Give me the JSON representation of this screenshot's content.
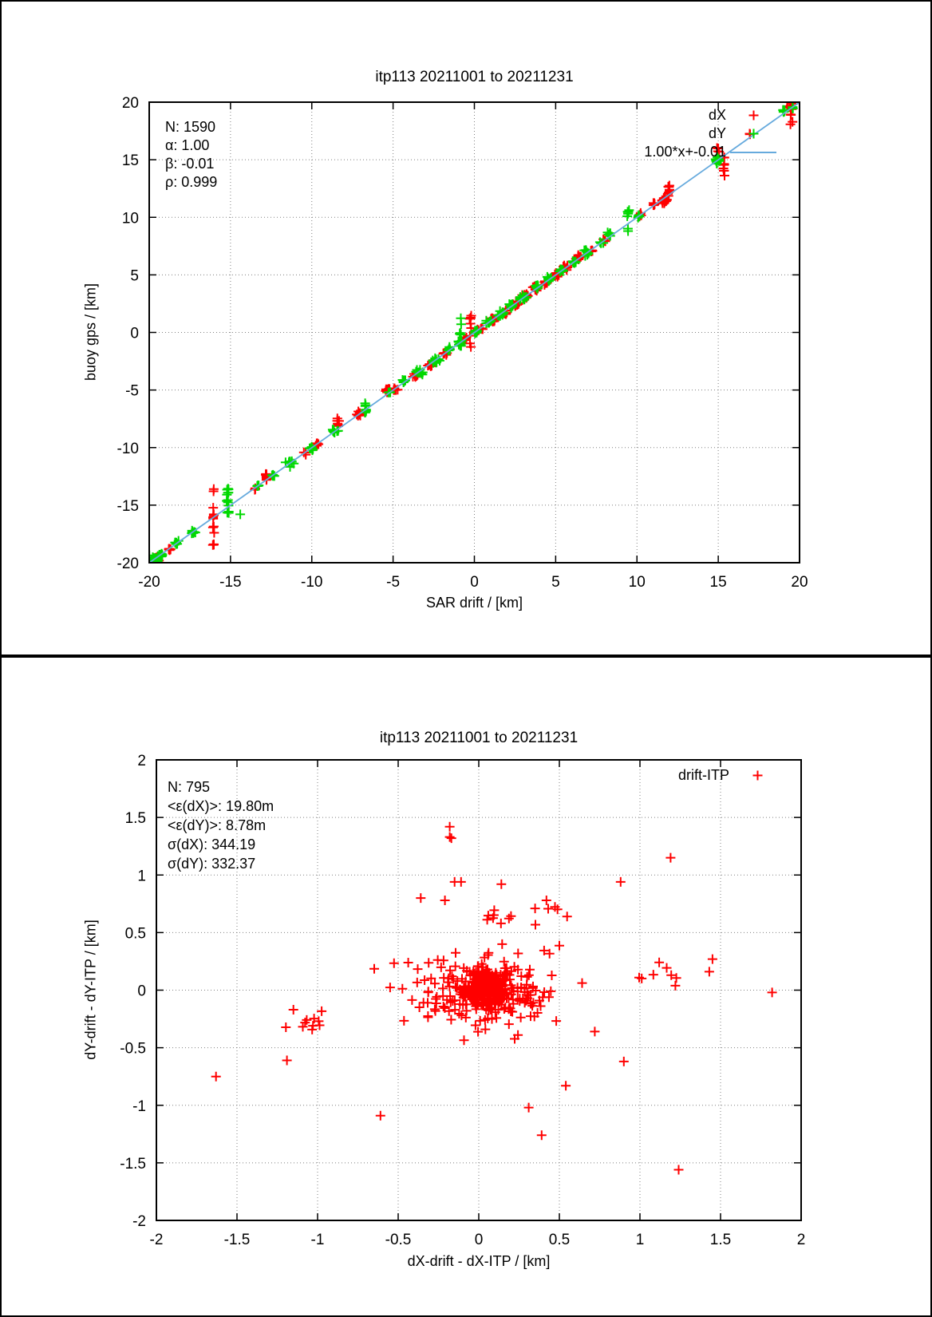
{
  "page": {
    "background": "#ffffff",
    "panel_border": "#000000",
    "grid_color": "#808080",
    "frame_color": "#000000"
  },
  "chart_data": [
    {
      "type": "scatter",
      "title": "itp113 20211001 to 20211231",
      "xlabel": "SAR drift / [km]",
      "ylabel": "buoy gps / [km]",
      "xlim": [
        -20,
        20
      ],
      "ylim": [
        -20,
        20
      ],
      "xticks": [
        -20,
        -15,
        -10,
        -5,
        0,
        5,
        10,
        15,
        20
      ],
      "yticks": [
        -20,
        -15,
        -10,
        -5,
        0,
        5,
        10,
        15,
        20
      ],
      "xtick_labels": [
        "-20",
        "-15",
        "-10",
        "-5",
        "0",
        "5",
        "10",
        "15",
        "20"
      ],
      "ytick_labels": [
        "-20",
        "-15",
        "-10",
        "-5",
        "0",
        "5",
        "10",
        "15",
        "20"
      ],
      "grid": true,
      "legend_position": "top-right",
      "stats": [
        "N: 1590",
        "α: 1.00",
        "β: -0.01",
        "ρ: 0.999"
      ],
      "legend": [
        {
          "label": "dX",
          "color": "#ff0000",
          "sample": "point"
        },
        {
          "label": "dY",
          "color": "#00d800",
          "sample": "point"
        },
        {
          "label": "1.00*x+-0.01",
          "color": "#66aadd",
          "sample": "line"
        }
      ],
      "fit_line": {
        "slope": 1.0,
        "intercept": -0.01,
        "color": "#66aadd"
      },
      "series": [
        {
          "name": "dX",
          "color": "#ff0000",
          "marker": "plus",
          "clusters": [
            [
              -19.6,
              -19.65,
              14,
              0.22,
              0.25
            ],
            [
              -18.75,
              -18.8,
              8,
              0.15,
              0.2
            ],
            [
              -16.05,
              -16.2,
              13,
              0.05,
              1.7
            ],
            [
              -13.5,
              -13.6,
              3,
              0.08,
              0.1
            ],
            [
              -12.8,
              -12.65,
              9,
              0.06,
              0.45
            ],
            [
              -10.4,
              -10.5,
              4,
              0.12,
              0.15
            ],
            [
              -9.65,
              -9.7,
              5,
              0.12,
              0.18
            ],
            [
              -8.4,
              -7.85,
              6,
              0.08,
              0.25
            ],
            [
              -7.1,
              -7.05,
              7,
              0.15,
              0.18
            ],
            [
              -5.3,
              -5.0,
              14,
              0.18,
              0.18
            ],
            [
              -4.85,
              -4.9,
              8,
              0.15,
              0.15
            ],
            [
              -3.6,
              -3.7,
              8,
              0.18,
              0.18
            ],
            [
              -2.7,
              -2.75,
              8,
              0.18,
              0.18
            ],
            [
              -1.8,
              -1.85,
              6,
              0.15,
              0.15
            ],
            [
              -0.25,
              0.2,
              9,
              0.05,
              0.95
            ],
            [
              -0.6,
              -0.6,
              6,
              0.1,
              0.2
            ],
            [
              0.35,
              0.3,
              6,
              0.18,
              0.18
            ],
            [
              1.15,
              1.1,
              8,
              0.15,
              0.15
            ],
            [
              1.9,
              1.7,
              8,
              0.15,
              0.22
            ],
            [
              2.55,
              2.5,
              16,
              0.22,
              0.22
            ],
            [
              3.15,
              3.1,
              14,
              0.2,
              0.2
            ],
            [
              3.8,
              3.85,
              12,
              0.18,
              0.18
            ],
            [
              4.4,
              4.3,
              8,
              0.15,
              0.15
            ],
            [
              5.05,
              5.0,
              8,
              0.15,
              0.15
            ],
            [
              5.6,
              5.6,
              10,
              0.18,
              0.18
            ],
            [
              6.4,
              6.5,
              10,
              0.15,
              0.2
            ],
            [
              7.2,
              7.1,
              5,
              0.1,
              0.12
            ],
            [
              8.0,
              8.0,
              4,
              0.1,
              0.12
            ],
            [
              10.2,
              10.2,
              5,
              0.1,
              0.15
            ],
            [
              11.0,
              11.1,
              6,
              0.1,
              0.18
            ],
            [
              11.7,
              11.5,
              14,
              0.22,
              0.28
            ],
            [
              11.95,
              12.2,
              8,
              0.07,
              0.4
            ],
            [
              15.35,
              14.5,
              10,
              0.06,
              0.65
            ],
            [
              15.0,
              15.9,
              4,
              0.1,
              0.25
            ],
            [
              16.9,
              17.2,
              3,
              0.08,
              0.12
            ],
            [
              19.5,
              18.8,
              10,
              0.06,
              0.75
            ],
            [
              19.3,
              19.55,
              4,
              0.12,
              0.15
            ]
          ],
          "points": []
        },
        {
          "name": "dY",
          "color": "#00d800",
          "marker": "plus",
          "clusters": [
            [
              -19.7,
              -19.7,
              18,
              0.22,
              0.28
            ],
            [
              -19.2,
              -19.3,
              8,
              0.15,
              0.15
            ],
            [
              -18.3,
              -18.3,
              8,
              0.18,
              0.18
            ],
            [
              -17.3,
              -17.3,
              8,
              0.13,
              0.15
            ],
            [
              -15.15,
              -15.0,
              14,
              0.08,
              1.0
            ],
            [
              -14.4,
              -15.8,
              1,
              0.01,
              0.01
            ],
            [
              -13.3,
              -13.3,
              4,
              0.1,
              0.1
            ],
            [
              -12.4,
              -12.45,
              5,
              0.13,
              0.15
            ],
            [
              -11.3,
              -11.3,
              10,
              0.28,
              0.35
            ],
            [
              -10.0,
              -10.1,
              8,
              0.13,
              0.22
            ],
            [
              -8.5,
              -8.6,
              9,
              0.18,
              0.28
            ],
            [
              -6.7,
              -6.6,
              8,
              0.1,
              0.45
            ],
            [
              -5.2,
              -5.2,
              6,
              0.13,
              0.15
            ],
            [
              -4.35,
              -4.25,
              7,
              0.1,
              0.2
            ],
            [
              -3.4,
              -3.4,
              10,
              0.22,
              0.22
            ],
            [
              -2.4,
              -2.4,
              12,
              0.2,
              0.2
            ],
            [
              -1.5,
              -1.5,
              8,
              0.18,
              0.18
            ],
            [
              -0.85,
              0.3,
              11,
              0.06,
              1.05
            ],
            [
              -0.9,
              -0.9,
              6,
              0.13,
              0.18
            ],
            [
              0.1,
              0.1,
              8,
              0.18,
              0.18
            ],
            [
              0.9,
              0.9,
              8,
              0.18,
              0.18
            ],
            [
              1.6,
              1.6,
              12,
              0.22,
              0.22
            ],
            [
              2.3,
              2.3,
              14,
              0.22,
              0.22
            ],
            [
              3.0,
              3.0,
              12,
              0.2,
              0.2
            ],
            [
              3.9,
              4.0,
              8,
              0.15,
              0.2
            ],
            [
              4.6,
              4.7,
              8,
              0.13,
              0.22
            ],
            [
              5.4,
              5.4,
              8,
              0.15,
              0.15
            ],
            [
              6.1,
              6.1,
              6,
              0.13,
              0.15
            ],
            [
              6.9,
              7.0,
              8,
              0.12,
              0.28
            ],
            [
              7.8,
              7.8,
              4,
              0.1,
              0.13
            ],
            [
              8.3,
              8.6,
              6,
              0.1,
              0.22
            ],
            [
              9.45,
              9.6,
              8,
              0.07,
              0.7
            ],
            [
              10.1,
              10.15,
              5,
              0.1,
              0.18
            ],
            [
              14.95,
              14.95,
              14,
              0.12,
              0.3
            ],
            [
              19.05,
              19.3,
              10,
              0.14,
              0.18
            ],
            [
              19.6,
              19.5,
              3,
              0.1,
              0.1
            ]
          ],
          "points": []
        }
      ]
    },
    {
      "type": "scatter",
      "title": "itp113 20211001 to 20211231",
      "xlabel": "dX-drift - dX-ITP / [km]",
      "ylabel": "dY-drift - dY-ITP / [km]",
      "xlim": [
        -2,
        2
      ],
      "ylim": [
        -2,
        2
      ],
      "xticks": [
        -2,
        -1.5,
        -1,
        -0.5,
        0,
        0.5,
        1,
        1.5,
        2
      ],
      "yticks": [
        -2,
        -1.5,
        -1,
        -0.5,
        0,
        0.5,
        1,
        1.5,
        2
      ],
      "xtick_labels": [
        "-2",
        "-1.5",
        "-1",
        "-0.5",
        "0",
        "0.5",
        "1",
        "1.5",
        "2"
      ],
      "ytick_labels": [
        "-2",
        "-1.5",
        "-1",
        "-0.5",
        "0",
        "0.5",
        "1",
        "1.5",
        "2"
      ],
      "grid": true,
      "legend_position": "top-right",
      "stats": [
        "N: 795",
        "<ε(dX)>:  19.80m",
        "<ε(dY)>: 8.78m",
        "σ(dX):  344.19",
        "σ(dY):  332.37"
      ],
      "legend": [
        {
          "label": "drift-ITP",
          "color": "#ff0000",
          "sample": "point"
        }
      ],
      "series": [
        {
          "name": "drift-ITP",
          "color": "#ff0000",
          "marker": "plus",
          "clusters": [
            [
              0.05,
              0.03,
              300,
              0.14,
              0.13
            ],
            [
              0.05,
              0.0,
              160,
              0.32,
              0.26
            ],
            [
              0.0,
              -0.05,
              70,
              0.6,
              0.38
            ],
            [
              -1.05,
              -0.28,
              10,
              0.13,
              0.08
            ],
            [
              1.2,
              0.12,
              8,
              0.22,
              0.1
            ],
            [
              0.2,
              0.66,
              14,
              0.3,
              0.12
            ]
          ],
          "points": [
            [
              -1.63,
              -0.75
            ],
            [
              -1.19,
              -0.61
            ],
            [
              -0.61,
              -1.09
            ],
            [
              0.54,
              -0.83
            ],
            [
              0.31,
              -1.02
            ],
            [
              0.39,
              -1.26
            ],
            [
              1.24,
              -1.56
            ],
            [
              -0.18,
              1.42
            ],
            [
              -0.18,
              1.33
            ],
            [
              -0.17,
              1.32
            ],
            [
              1.19,
              1.15
            ],
            [
              0.88,
              0.94
            ],
            [
              -0.15,
              0.94
            ],
            [
              -0.11,
              0.94
            ],
            [
              0.14,
              0.92
            ],
            [
              -0.21,
              0.78
            ],
            [
              1.45,
              0.27
            ],
            [
              1.43,
              0.16
            ],
            [
              1.82,
              -0.02
            ],
            [
              -1.15,
              -0.17
            ],
            [
              0.72,
              -0.36
            ],
            [
              0.9,
              -0.62
            ],
            [
              -0.36,
              0.8
            ],
            [
              0.42,
              0.78
            ]
          ]
        }
      ]
    }
  ]
}
